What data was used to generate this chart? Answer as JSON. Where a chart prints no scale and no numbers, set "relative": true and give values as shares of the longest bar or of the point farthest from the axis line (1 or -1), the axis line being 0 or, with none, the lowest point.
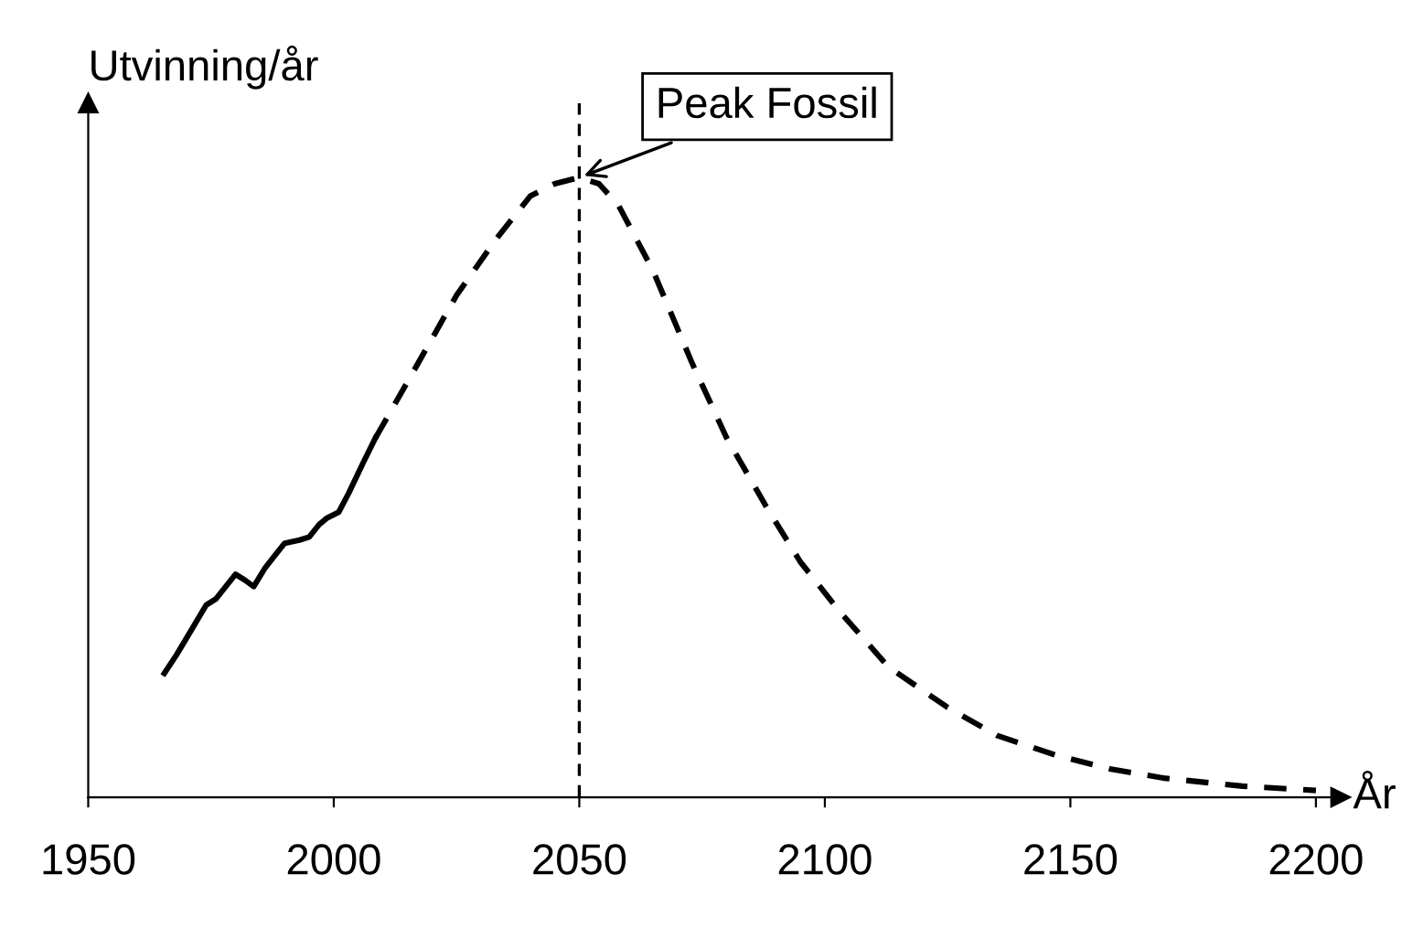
{
  "chart_data": {
    "type": "line",
    "relative": true,
    "xlabel": "År",
    "ylabel": "Utvinning/år",
    "xlim": [
      1950,
      2205
    ],
    "xticks": [
      1950,
      2000,
      2050,
      2100,
      2150,
      2200
    ],
    "series": [
      {
        "color": "#000000",
        "line_style": "solid",
        "x": [
          1965.5,
          1968,
          1971,
          1974,
          1976,
          1978,
          1980,
          1982,
          1983.7,
          1986,
          1988,
          1990,
          1993,
          1995,
          1997,
          1998.5,
          2001,
          2003,
          2006,
          2008.5
        ],
        "values": [
          0.2,
          0.23,
          0.27,
          0.31,
          0.32,
          0.34,
          0.36,
          0.35,
          0.34,
          0.37,
          0.39,
          0.41,
          0.415,
          0.42,
          0.44,
          0.45,
          0.46,
          0.49,
          0.54,
          0.58
        ]
      },
      {
        "color": "#000000",
        "line_style": "dashed",
        "x": [
          2008.5,
          2015,
          2025,
          2033,
          2040,
          2045,
          2050,
          2054,
          2058,
          2065,
          2073,
          2080,
          2088,
          2095,
          2103,
          2113,
          2125,
          2135,
          2147,
          2158,
          2169,
          2185,
          2200
        ],
        "values": [
          0.58,
          0.67,
          0.81,
          0.9,
          0.97,
          0.99,
          1.0,
          0.99,
          0.955,
          0.85,
          0.7,
          0.58,
          0.47,
          0.38,
          0.3,
          0.21,
          0.145,
          0.1,
          0.068,
          0.046,
          0.031,
          0.018,
          0.011
        ]
      }
    ],
    "ref_lines": [
      {
        "axis": "x",
        "value": 2050,
        "color": "#000000",
        "line_style": "dashed"
      }
    ],
    "annotations": [
      {
        "text": "Peak Fossil",
        "x": 2050,
        "y": 1.0
      }
    ],
    "grid": false,
    "legend": false,
    "marker": "none"
  }
}
